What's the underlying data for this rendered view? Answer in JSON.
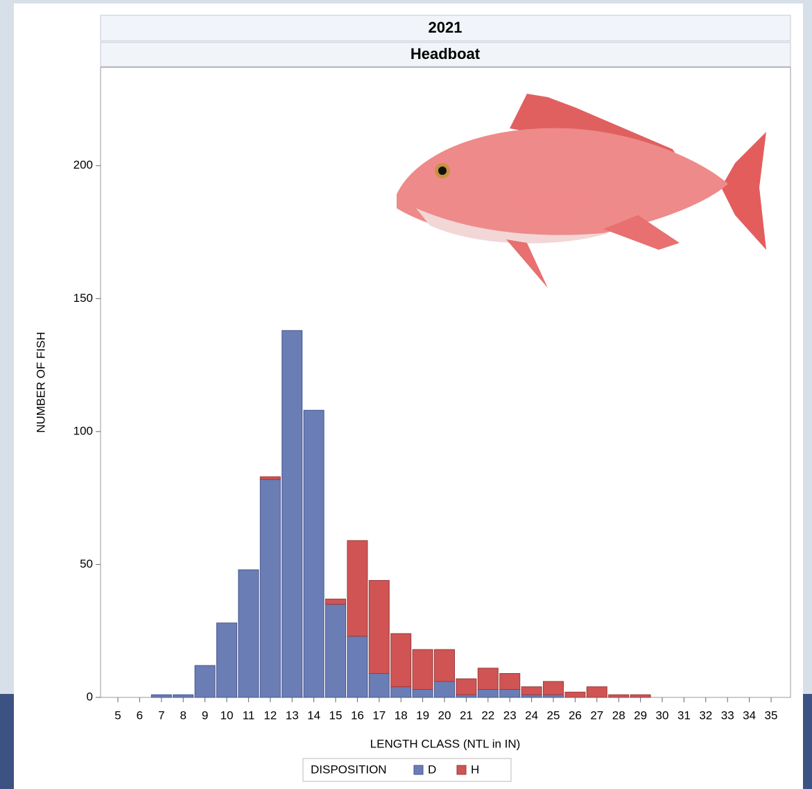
{
  "chart_data": {
    "type": "bar",
    "stacked": true,
    "panel_titles": [
      "2021",
      "Headboat"
    ],
    "y_label": "NUMBER OF FISH",
    "x_label": "LENGTH CLASS (NTL in IN)",
    "legend_title": "DISPOSITION",
    "categories": [
      "5",
      "6",
      "7",
      "8",
      "9",
      "10",
      "11",
      "12",
      "13",
      "14",
      "15",
      "16",
      "17",
      "18",
      "19",
      "20",
      "21",
      "22",
      "23",
      "24",
      "25",
      "26",
      "27",
      "28",
      "29",
      "30",
      "31",
      "32",
      "33",
      "34",
      "35"
    ],
    "series": [
      {
        "name": "D",
        "color": "#6a7db5",
        "values": [
          0,
          0,
          1,
          1,
          12,
          28,
          48,
          82,
          138,
          108,
          35,
          23,
          9,
          4,
          3,
          6,
          1,
          3,
          3,
          1,
          1,
          0,
          0,
          0,
          0,
          0,
          0,
          0,
          0,
          0,
          0
        ]
      },
      {
        "name": "H",
        "color": "#d05454",
        "values": [
          0,
          0,
          0,
          0,
          0,
          0,
          0,
          1,
          0,
          0,
          2,
          36,
          35,
          20,
          15,
          12,
          6,
          8,
          6,
          3,
          5,
          2,
          4,
          1,
          1,
          0,
          0,
          0,
          0,
          0,
          0
        ]
      }
    ],
    "ylim": [
      0,
      237
    ],
    "yticks": [
      0,
      50,
      100,
      150,
      200
    ]
  }
}
